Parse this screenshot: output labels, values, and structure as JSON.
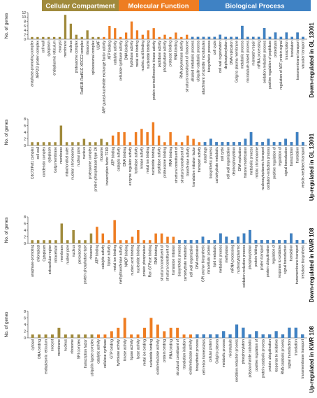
{
  "headers": {
    "cellular_compartment": "Cellular Compartment",
    "molecular_function": "Molecular Function",
    "biological_process": "Biological Process"
  },
  "colors": {
    "cellular_compartment": "#a08a3c",
    "molecular_function": "#ee7d22",
    "biological_process": "#3f82c4"
  },
  "chart_data": [
    {
      "type": "bar",
      "title": "Down-regulated in GL 13001",
      "ylabel": "No. of genes",
      "ylim": [
        0,
        12
      ],
      "yticks": [
        0,
        2,
        4,
        6,
        8,
        10,
        12
      ],
      "categories": [
        "anaphase-promoting complex",
        "ARP2/3 protein complex",
        "cell wall",
        "cytoplasm",
        "endoplasmic reticulum",
        "exocyst",
        "membrane",
        "nucleus",
        "proteasome complex",
        "Rad51B-Rad51C-XRCC2 complex",
        "ribosome",
        "spliceosomal complex",
        "U2AF",
        "ARF guanyl-nucleotide exchange factor activity",
        "ATP binding",
        "catalytic activity",
        "cellulose synthase activity",
        "DNA binding",
        "hydrolase activity",
        "metal ion binding",
        "nucleic acid binding",
        "nucleotide binding",
        "protein serine/threonine kinase activity",
        "peptidase activity",
        "phosphatase activity",
        "protease binding",
        "RNA binding",
        "RNA polymerase activity",
        "structural constituent of ribosome",
        "alkaloid metabolic process",
        "ubiquitin catabolic process",
        "attachment of spindle microtubules",
        "biosynthetic process",
        "cell cycle",
        "cell wall organization",
        "dephosphorylation",
        "DNA replication",
        "Golgi to plasma membrane",
        "metabolic process",
        "microtubule-based process",
        "mismatch repair",
        "mRNA processing",
        "oxidation-reduction process",
        "positive regulation of peptidase",
        "proteolysis",
        "regulation of ARF protein signal",
        "transcription",
        "translation",
        "transmembrane transport",
        "vacuolar transport"
      ],
      "groups": [
        "CC",
        "CC",
        "CC",
        "CC",
        "CC",
        "CC",
        "CC",
        "CC",
        "CC",
        "CC",
        "CC",
        "CC",
        "CC",
        "MF",
        "MF",
        "MF",
        "MF",
        "MF",
        "MF",
        "MF",
        "MF",
        "MF",
        "MF",
        "MF",
        "MF",
        "MF",
        "MF",
        "MF",
        "MF",
        "BP",
        "BP",
        "BP",
        "BP",
        "BP",
        "BP",
        "BP",
        "BP",
        "BP",
        "BP",
        "BP",
        "BP",
        "BP",
        "BP",
        "BP",
        "BP",
        "BP",
        "BP",
        "BP",
        "BP",
        "BP"
      ],
      "values": [
        1,
        1,
        1,
        1,
        1,
        1,
        11,
        7,
        2,
        1,
        4,
        1,
        1,
        1,
        6,
        5,
        1,
        3,
        8,
        4,
        2,
        4,
        5,
        1,
        2,
        1,
        3,
        1,
        2,
        1,
        1,
        1,
        1,
        1,
        2,
        1,
        1,
        1,
        6,
        1,
        1,
        1,
        5,
        1,
        3,
        1,
        3,
        1,
        3,
        1
      ]
    },
    {
      "type": "bar",
      "title": "Up-regulated in GL 13001",
      "ylabel": "No. of genes",
      "ylim": [
        0,
        8
      ],
      "yticks": [
        0,
        2,
        4,
        6,
        8
      ],
      "categories": [
        "Cdc73/Paf1 complex",
        "cell wall",
        "condensin complex",
        "cytoplasm",
        "Golgi membrane",
        "membrane",
        "mitochondrial outer",
        "nuclear chromosome",
        "nuclear pore",
        "nucleus",
        "proteasome complex",
        "protein phosphatase type 2A",
        "ribosome",
        "transcription factor TFIID",
        "ATP binding",
        "catalytic activity",
        "DNA binding",
        "enzyme regulator activity",
        "hydrolase activity",
        "kinase activity",
        "metal ion binding",
        "nucleotide binding",
        "peptidase activity",
        "proteasome binding",
        "RNA binding",
        "structural constituent of",
        "structural constituent of",
        "transferase activity",
        "translation initiation factor",
        "transport activity",
        "autophagy",
        "biosynthetic process",
        "carbohydrate metabolic",
        "cell cycle",
        "cell wall organization",
        "dephosphorylation",
        "DNA replication",
        "histone modification",
        "metabolic process",
        "mitotic chromosome",
        "nucleocytoplasmic transport",
        "oxidation-reduction process",
        "positive regulation of",
        "regulation of",
        "signal transduction",
        "transcription",
        "translation",
        "vesicle-mediated transport"
      ],
      "groups": [
        "CC",
        "CC",
        "CC",
        "CC",
        "CC",
        "CC",
        "CC",
        "CC",
        "CC",
        "CC",
        "CC",
        "CC",
        "CC",
        "CC",
        "MF",
        "MF",
        "MF",
        "MF",
        "MF",
        "MF",
        "MF",
        "MF",
        "MF",
        "MF",
        "MF",
        "MF",
        "MF",
        "MF",
        "MF",
        "MF",
        "BP",
        "BP",
        "BP",
        "BP",
        "BP",
        "BP",
        "BP",
        "BP",
        "BP",
        "BP",
        "BP",
        "BP",
        "BP",
        "BP",
        "BP",
        "BP",
        "BP",
        "BP"
      ],
      "values": [
        1,
        1,
        1,
        1,
        1,
        6,
        1,
        1,
        1,
        2,
        1,
        1,
        2,
        1,
        3,
        4,
        4,
        1,
        4,
        5,
        4,
        7,
        3,
        1,
        4,
        1,
        1,
        3,
        2,
        1,
        1,
        2,
        1,
        1,
        1,
        1,
        1,
        2,
        4,
        1,
        1,
        2,
        1,
        1,
        2,
        1,
        4,
        1
      ]
    },
    {
      "type": "bar",
      "title": "Down-regulated in KWR 108",
      "ylabel": "No. of genes",
      "ylim": [
        0,
        8
      ],
      "yticks": [
        0,
        2,
        4,
        6,
        8
      ],
      "categories": [
        "anaphase-promoting",
        "chloroplast",
        "Cytoplasm",
        "extracellular region",
        "intracellular",
        "membrane",
        "nuclear pore",
        "nucleus",
        "peroxisomal",
        "protein phosphatase type",
        "ribosome",
        "ATP binding",
        "catalytic activity",
        "lipase activity",
        "metal ion binding",
        "methyltransferase activity",
        "NADP binding",
        "nucleic acid binding",
        "nucleotide binding",
        "protein phosphatase",
        "Ran GTPase binding",
        "RNA binding",
        "structural constituent of",
        "structural constituent of",
        "translation initiation",
        "biosynthetic process",
        "carbohydrate metabolic",
        "cell wall organization",
        "DNA replication",
        "GPI anchor biosynthetic",
        "intracellular protein",
        "lipid metabolic",
        "metabolic process",
        "methylation",
        "mRNA processing",
        "nucleocytoplasmic",
        "oxidation-reduction process",
        "phosphorylation",
        "protein folding",
        "protein transport",
        "protein ubiquitination",
        "regulation of",
        "response to oxidative",
        "signal transduction",
        "translation",
        "transmembrane transport",
        "trehalose biosynthetic"
      ],
      "groups": [
        "CC",
        "CC",
        "CC",
        "CC",
        "CC",
        "CC",
        "CC",
        "CC",
        "CC",
        "CC",
        "CC",
        "MF",
        "MF",
        "MF",
        "MF",
        "MF",
        "MF",
        "MF",
        "MF",
        "MF",
        "MF",
        "MF",
        "MF",
        "MF",
        "MF",
        "BP",
        "BP",
        "BP",
        "BP",
        "BP",
        "BP",
        "BP",
        "BP",
        "BP",
        "BP",
        "BP",
        "BP",
        "BP",
        "BP",
        "BP",
        "BP",
        "BP",
        "BP",
        "BP",
        "BP",
        "BP",
        "BP"
      ],
      "values": [
        1,
        1,
        1,
        1,
        1,
        6,
        1,
        4,
        1,
        1,
        3,
        5,
        3,
        1,
        7,
        1,
        1,
        2,
        4,
        1,
        1,
        3,
        3,
        2,
        2,
        1,
        1,
        1,
        1,
        2,
        1,
        1,
        3,
        2,
        1,
        2,
        3,
        4,
        1,
        1,
        1,
        1,
        1,
        1,
        3,
        1,
        1
      ]
    },
    {
      "type": "bar",
      "title": "Up-regulated in KWR 108",
      "ylabel": "No. of genes",
      "ylim": [
        0,
        8
      ],
      "yticks": [
        0,
        2,
        4,
        6,
        8
      ],
      "categories": [
        "cytosol",
        "DNA binding",
        "endoplasmic reticulum",
        "exocyst",
        "membrane",
        "nucleus",
        "ribosome",
        "SRI complex",
        "transcription factor",
        "ubiquitin ligase complex",
        "catalytic activity",
        "cellulose synthase",
        "GTP binding",
        "hydrolase activity",
        "kinase activity",
        "ligase activity",
        "lyase activity",
        "metal ion binding",
        "nucleotide binding",
        "oxidoreductase activity",
        "protein binding",
        "RNA binding",
        "structural constituent of",
        "translation initiation",
        "oxidoreductase activity",
        "biosynthetic process",
        "cell redox homeostasis",
        "cellular protein",
        "Golgi to plasma",
        "metabolic process",
        "microtubule",
        "oxidation-reduction process",
        "phosphorylation",
        "polysaccharide catabolic",
        "positive regulation of",
        "protein catabolic process",
        "protein ubiquitination",
        "response to oxidative",
        "RNA catabolic process",
        "signal transduction",
        "translation",
        "transmembrane transport"
      ],
      "groups": [
        "CC",
        "CC",
        "CC",
        "CC",
        "CC",
        "CC",
        "CC",
        "CC",
        "CC",
        "CC",
        "MF",
        "MF",
        "MF",
        "MF",
        "MF",
        "MF",
        "MF",
        "MF",
        "MF",
        "MF",
        "MF",
        "MF",
        "MF",
        "MF",
        "MF",
        "BP",
        "BP",
        "BP",
        "BP",
        "BP",
        "BP",
        "BP",
        "BP",
        "BP",
        "BP",
        "BP",
        "BP",
        "BP",
        "BP",
        "BP",
        "BP",
        "BP"
      ],
      "values": [
        1,
        1,
        1,
        1,
        3,
        1,
        1,
        1,
        1,
        1,
        1,
        1,
        2,
        3,
        6,
        1,
        1,
        3,
        6,
        4,
        2,
        3,
        3,
        1,
        1,
        1,
        1,
        1,
        1,
        2,
        1,
        4,
        3,
        1,
        2,
        1,
        1,
        2,
        1,
        3,
        3,
        1
      ]
    }
  ]
}
